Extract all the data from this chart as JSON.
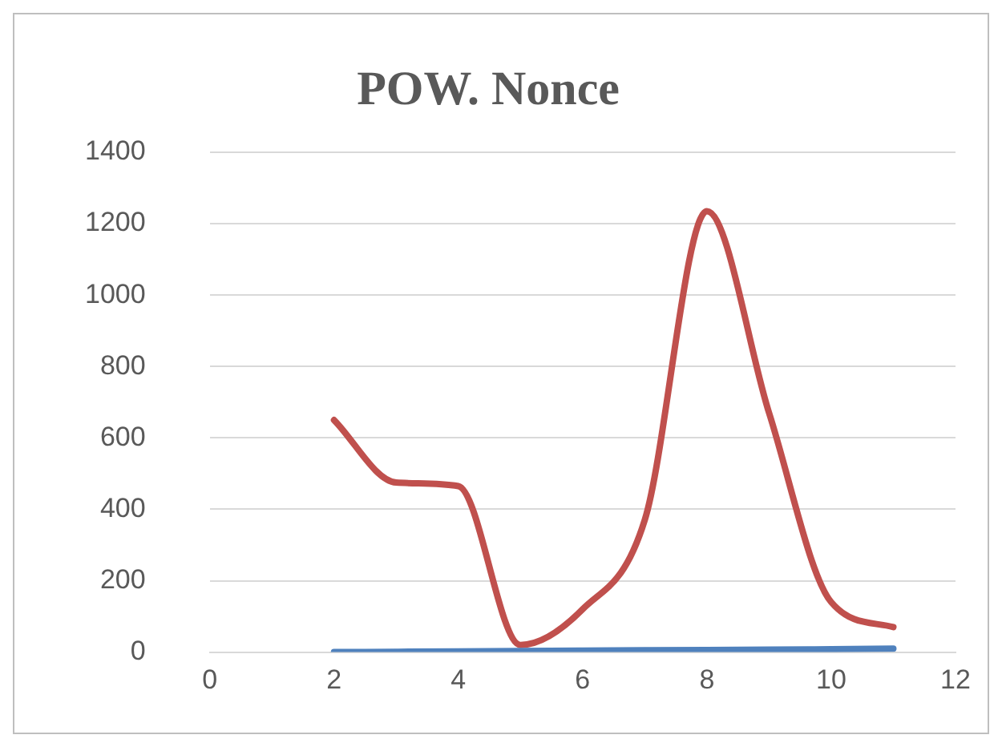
{
  "chart_data": {
    "type": "line",
    "title": "POW. Nonce",
    "x": [
      2,
      3,
      4,
      5,
      6,
      7,
      8,
      9,
      10,
      11
    ],
    "series": [
      {
        "color": "#4f81bd",
        "values": [
          0,
          1,
          2,
          3,
          4,
          5,
          6,
          7,
          8,
          10
        ]
      },
      {
        "color": "#c0504d",
        "values": [
          650,
          475,
          465,
          20,
          120,
          370,
          1235,
          670,
          140,
          70
        ]
      }
    ],
    "xlim": [
      0,
      12
    ],
    "xticks": [
      0,
      2,
      4,
      6,
      8,
      10,
      12
    ],
    "ylim": [
      0,
      1400
    ],
    "yticks": [
      0,
      200,
      400,
      600,
      800,
      1000,
      1200,
      1400
    ],
    "grid": "y",
    "legend": false,
    "marker": "none",
    "line_style": "solid"
  }
}
